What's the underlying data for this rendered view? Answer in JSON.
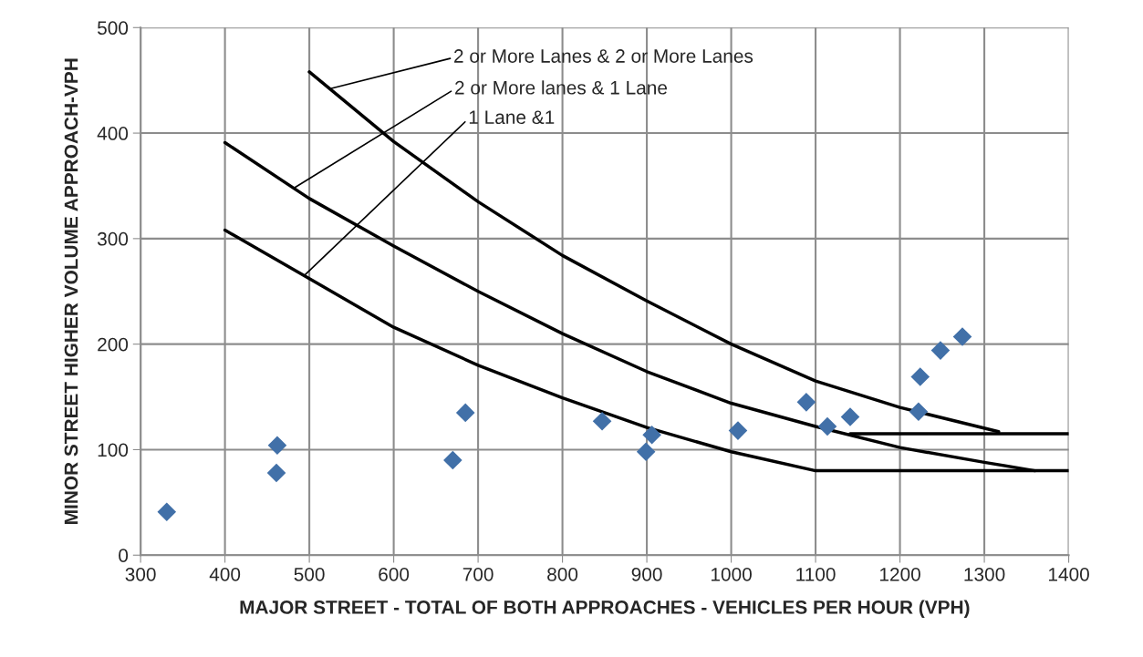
{
  "chart_data": {
    "type": "scatter",
    "xlabel": "MAJOR STREET - TOTAL OF BOTH APPROACHES - VEHICLES PER HOUR (VPH)",
    "ylabel": "MINOR STREET HIGHER VOLUME APPROACH-VPH",
    "xlim": [
      300,
      1400
    ],
    "xticks": [
      300,
      400,
      500,
      600,
      700,
      800,
      900,
      1000,
      1100,
      1200,
      1300,
      1400
    ],
    "ylim": [
      0,
      500
    ],
    "yticks": [
      0,
      100,
      200,
      300,
      400,
      500
    ],
    "grid": true,
    "legend": false,
    "marker": "diamond",
    "series": [
      {
        "color": "#4170a8",
        "x": [
          331,
          462,
          461,
          685,
          670,
          847,
          906,
          899,
          1008,
          1089,
          1114,
          1141,
          1224,
          1222,
          1248,
          1274
        ],
        "values": [
          41,
          104,
          78,
          135,
          90,
          127,
          114,
          98,
          118,
          145,
          122,
          131,
          169,
          136,
          194,
          207
        ]
      },
      {
        "type": "line",
        "color": "#000000",
        "marker": "none",
        "x": [
          500,
          600,
          700,
          800,
          900,
          1000,
          1100,
          1200,
          1317
        ],
        "values": [
          458,
          392,
          335,
          284,
          241,
          200,
          165,
          140,
          117
        ]
      },
      {
        "type": "line",
        "color": "#000000",
        "marker": "none",
        "x": [
          1141,
          1400
        ],
        "values": [
          115,
          115
        ]
      },
      {
        "type": "line",
        "color": "#000000",
        "marker": "none",
        "x": [
          400,
          500,
          600,
          700,
          800,
          900,
          1000,
          1100,
          1200,
          1300,
          1360
        ],
        "values": [
          391,
          338,
          293,
          250,
          210,
          174,
          144,
          122,
          102,
          88,
          80
        ]
      },
      {
        "type": "line",
        "color": "#000000",
        "marker": "none",
        "x": [
          400,
          500,
          600,
          700,
          800,
          900,
          1000,
          1100,
          1400
        ],
        "values": [
          308,
          262,
          216,
          180,
          149,
          121,
          98,
          80,
          80
        ]
      }
    ],
    "annotations": [
      {
        "text": "2 or More Lanes & 2 or More Lanes",
        "x": 524,
        "y": 442
      },
      {
        "text": "2 or More lanes & 1 Lane",
        "x": 482,
        "y": 348
      },
      {
        "text": "1 Lane &1",
        "x": 494,
        "y": 265
      }
    ]
  }
}
